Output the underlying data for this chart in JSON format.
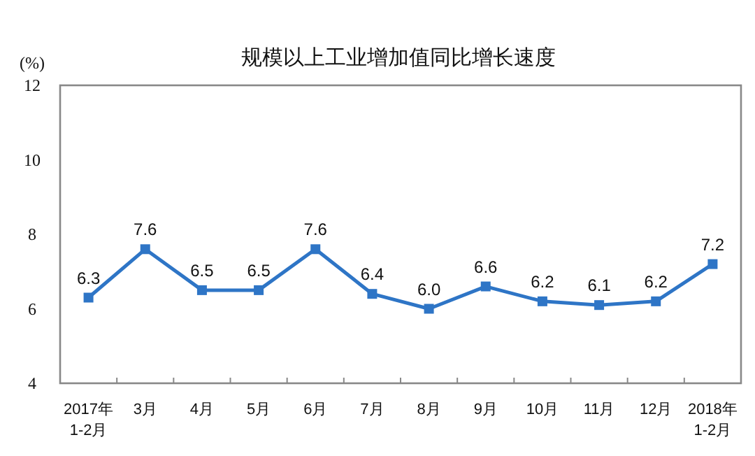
{
  "chart_data": {
    "type": "line",
    "title": "规模以上工业增加值同比增长速度",
    "ylabel": "(%)",
    "categories": [
      "2017年\n1-2月",
      "3月",
      "4月",
      "5月",
      "6月",
      "7月",
      "8月",
      "9月",
      "10月",
      "11月",
      "12月",
      "2018年\n1-2月"
    ],
    "series": [
      {
        "color": "#2e75c6",
        "values": [
          6.3,
          7.6,
          6.5,
          6.5,
          7.6,
          6.4,
          6.0,
          6.6,
          6.2,
          6.1,
          6.2,
          7.2
        ],
        "value_labels": [
          "6.3",
          "7.6",
          "6.5",
          "6.5",
          "7.6",
          "6.4",
          "6.0",
          "6.6",
          "6.2",
          "6.1",
          "6.2",
          "7.2"
        ]
      }
    ],
    "ylim": [
      4,
      12
    ],
    "yticks": [
      4,
      6,
      8,
      10,
      12
    ],
    "grid": false,
    "marker": "square",
    "line_style": "solid"
  }
}
